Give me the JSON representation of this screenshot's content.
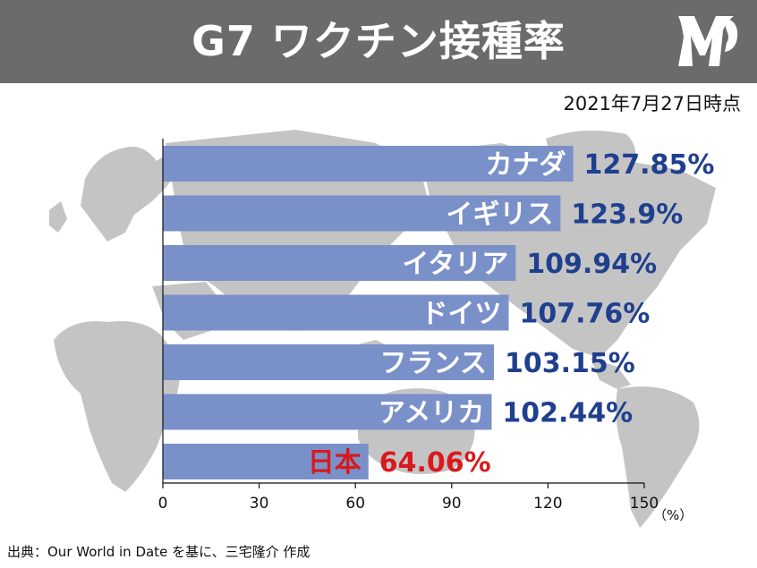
{
  "header": {
    "title": "G7 ワクチン接種率"
  },
  "date_label": "2021年7月27日時点",
  "source": "出典：Our World in Date を基に、三宅隆介 作成",
  "colors": {
    "header_bg": "#6b6b6b",
    "bar": "#7a90c8",
    "bar_highlight": "#7a90c8",
    "value_blue": "#1f3f8f",
    "value_red": "#d9191c",
    "map": "#c4c4c4"
  },
  "chart_data": {
    "type": "bar",
    "orientation": "horizontal",
    "categories": [
      "カナダ",
      "イギリス",
      "イタリア",
      "ドイツ",
      "フランス",
      "アメリカ",
      "日本"
    ],
    "values": [
      127.85,
      123.9,
      109.94,
      107.76,
      103.15,
      102.44,
      64.06
    ],
    "value_labels": [
      "127.85%",
      "123.9%",
      "109.94%",
      "107.76%",
      "103.15%",
      "102.44%",
      "64.06%"
    ],
    "highlight": "日本",
    "xlim": [
      0,
      150
    ],
    "xticks": [
      0,
      30,
      60,
      90,
      120,
      150
    ],
    "xunit": "（%）",
    "grid": false
  }
}
